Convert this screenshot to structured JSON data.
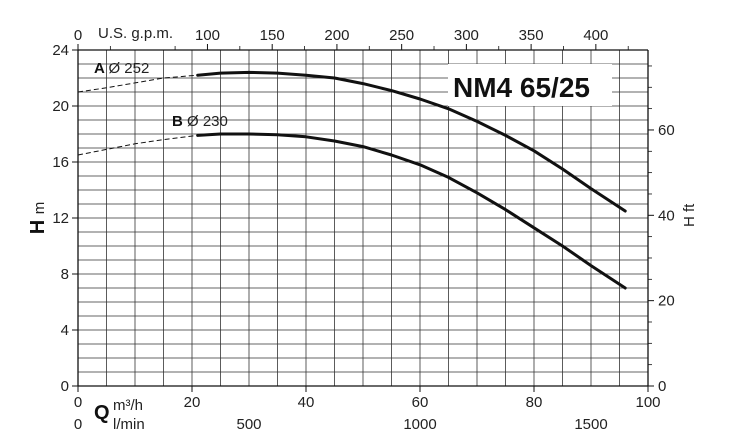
{
  "chart_data": {
    "type": "line",
    "title": "NM4 65/25",
    "axes": {
      "q_m3h": {
        "label_letter": "Q",
        "unit": "m³/h",
        "range": [
          0,
          100
        ],
        "ticks": [
          0,
          20,
          40,
          60,
          80,
          100
        ]
      },
      "q_lmin": {
        "unit": "l/min",
        "ticks": [
          0,
          500,
          1000,
          1500
        ]
      },
      "q_usgpm": {
        "label": "U.S. g.p.m.",
        "ticks": [
          0,
          100,
          150,
          200,
          250,
          300,
          350,
          400
        ]
      },
      "h_m": {
        "label": "H m",
        "range": [
          0,
          24
        ],
        "ticks": [
          0,
          4,
          8,
          12,
          16,
          20,
          24
        ]
      },
      "h_ft": {
        "label": "H ft",
        "ticks": [
          0,
          20,
          40,
          60
        ]
      }
    },
    "grid": true,
    "series": [
      {
        "name": "A",
        "label_letter": "A",
        "label_diameter": "Ø 252",
        "color": "#111111",
        "dashed_x": [
          0,
          5,
          10,
          15,
          21
        ],
        "dashed_y": [
          21.0,
          21.3,
          21.65,
          22.0,
          22.2
        ],
        "x": [
          21,
          25,
          30,
          35,
          40,
          45,
          50,
          55,
          60,
          65,
          70,
          75,
          80,
          85,
          90,
          96
        ],
        "y": [
          22.2,
          22.35,
          22.4,
          22.35,
          22.2,
          22.0,
          21.6,
          21.1,
          20.5,
          19.8,
          18.9,
          17.9,
          16.8,
          15.5,
          14.1,
          12.5
        ]
      },
      {
        "name": "B",
        "label_letter": "B",
        "label_diameter": "Ø 230",
        "color": "#111111",
        "dashed_x": [
          0,
          5,
          10,
          15,
          21
        ],
        "dashed_y": [
          16.5,
          16.9,
          17.3,
          17.6,
          17.9
        ],
        "x": [
          21,
          25,
          30,
          35,
          40,
          45,
          50,
          55,
          60,
          65,
          70,
          75,
          80,
          85,
          90,
          96
        ],
        "y": [
          17.9,
          18.0,
          18.0,
          17.95,
          17.8,
          17.5,
          17.1,
          16.5,
          15.8,
          14.9,
          13.8,
          12.6,
          11.3,
          10.0,
          8.6,
          7.0
        ]
      }
    ]
  }
}
